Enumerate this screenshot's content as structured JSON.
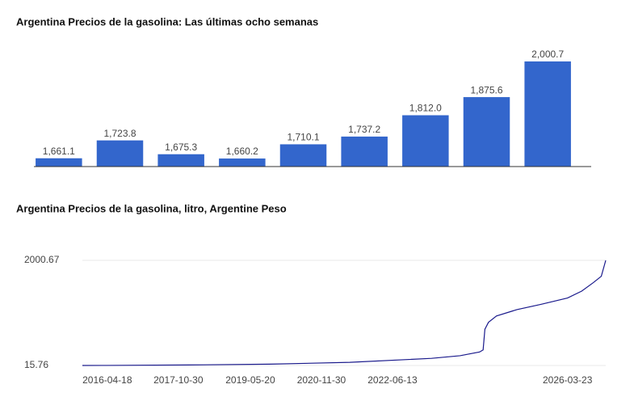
{
  "chart_data": [
    {
      "type": "bar",
      "title": "Argentina Precios de la gasolina: Las últimas ocho semanas",
      "categories": [
        null,
        null,
        null,
        null,
        null,
        null,
        null,
        null,
        null
      ],
      "values": [
        1661.1,
        1723.8,
        1675.3,
        1660.2,
        1710.1,
        1737.2,
        1812.0,
        1875.6,
        2000.7
      ],
      "value_labels": [
        "1,661.1",
        "1,723.8",
        "1,675.3",
        "1,660.2",
        "1,710.1",
        "1,737.2",
        "1,812.0",
        "1,875.6",
        "2,000.7"
      ],
      "color": "#3366cc",
      "ylim": [
        1632,
        2046
      ]
    },
    {
      "type": "line",
      "title": "Argentina Precios de la gasolina, litro, Argentine Peso",
      "x": [
        "2015-10-05",
        "2016-04-18",
        "2018-01-15",
        "2019-10-14",
        "2021-07-12",
        "2023-04-17",
        "2023-11-27",
        "2024-04-29",
        "2024-05-27",
        "2024-06-10",
        "2024-07-08",
        "2024-09-09",
        "2025-02-17",
        "2025-08-25",
        "2026-03-23",
        "2026-07-13",
        "2026-10-12",
        "2026-12-14",
        "2027-01-18"
      ],
      "values": [
        15.76,
        17,
        25,
        40,
        75,
        150,
        200,
        270,
        310,
        700,
        830,
        950,
        1070,
        1170,
        1290,
        1420,
        1580,
        1700,
        2000.67
      ],
      "color": "#1a1a8c",
      "xlim": [
        "2015-10-05",
        "2027-01-18"
      ],
      "xticks": [
        "2016-04-18",
        "2017-10-30",
        "2019-05-20",
        "2020-11-30",
        "2022-06-13",
        "2026-03-23"
      ],
      "ylim": [
        15.76,
        2000.67
      ],
      "yticks": [
        15.76,
        2000.67
      ],
      "grid": true
    }
  ]
}
